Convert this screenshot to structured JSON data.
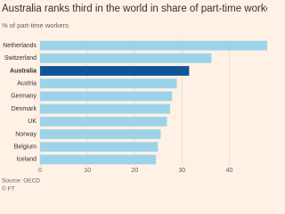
{
  "chart_data": {
    "type": "barh",
    "title": "Australia ranks third in the world in share of part-time workers",
    "subtitle": "% of part-time workers",
    "categories": [
      "Netherlands",
      "Switzerland",
      "Australia",
      "Austria",
      "Germany",
      "Denmark",
      "UK",
      "Norway",
      "Belgium",
      "Iceland"
    ],
    "values": [
      48,
      36.2,
      31.5,
      28.9,
      27.9,
      27.5,
      26.8,
      25.5,
      24.9,
      24.5
    ],
    "colors": [
      "#9dd3e9",
      "#9dd3e9",
      "#0f5499",
      "#9dd3e9",
      "#9dd3e9",
      "#9dd3e9",
      "#9dd3e9",
      "#9dd3e9",
      "#9dd3e9",
      "#9dd3e9"
    ],
    "xlim": [
      0,
      48
    ],
    "xticks": [
      0,
      10,
      20,
      30,
      40
    ],
    "grid": true,
    "source": "Source: OECD",
    "credit": "© FT"
  }
}
